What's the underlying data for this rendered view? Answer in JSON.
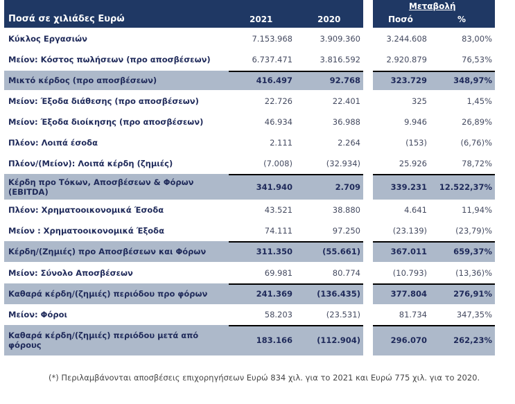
{
  "header": {
    "title": "Ποσά σε χιλιάδες Ευρώ",
    "col_2021": "2021",
    "col_2020": "2020",
    "change_group": "Μεταβολή",
    "col_amount": "Ποσό",
    "col_pct": "%"
  },
  "rows": [
    {
      "label": "Κύκλος Εργασιών",
      "v2021": "7.153.968",
      "v2020": "3.909.360",
      "amount": "3.244.608",
      "pct": "83,00%"
    },
    {
      "label": "Μείον: Κόστος πωλήσεων (προ αποσβέσεων)",
      "v2021": "6.737.471",
      "v2020": "3.816.592",
      "amount": "2.920.879",
      "pct": "76,53%"
    },
    {
      "label": "Μικτό κέρδος (προ αποσβέσεων)",
      "v2021": "416.497",
      "v2020": "92.768",
      "amount": "323.729",
      "pct": "348,97%"
    },
    {
      "label": "Μείον: Έξοδα διάθεσης (προ αποσβέσεων)",
      "v2021": "22.726",
      "v2020": "22.401",
      "amount": "325",
      "pct": "1,45%"
    },
    {
      "label": "Μείον: Έξοδα διοίκησης (προ αποσβέσεων)",
      "v2021": "46.934",
      "v2020": "36.988",
      "amount": "9.946",
      "pct": "26,89%"
    },
    {
      "label": "Πλέον: Λοιπά έσοδα",
      "v2021": "2.111",
      "v2020": "2.264",
      "amount": "(153)",
      "pct": "(6,76)%"
    },
    {
      "label": "Πλέον/(Μείον): Λοιπά κέρδη (ζημιές)",
      "v2021": "(7.008)",
      "v2020": "(32.934)",
      "amount": "25.926",
      "pct": "78,72%"
    },
    {
      "label": "Κέρδη προ Τόκων, Αποσβέσεων & Φόρων (EBITDA)",
      "v2021": "341.940",
      "v2020": "2.709",
      "amount": "339.231",
      "pct": "12.522,37%"
    },
    {
      "label": "Πλέον:  Χρηματοοικονομικά Έσοδα",
      "v2021": "43.521",
      "v2020": "38.880",
      "amount": "4.641",
      "pct": "11,94%"
    },
    {
      "label": "Μείον : Χρηματοοικονομικά Έξοδα",
      "v2021": "74.111",
      "v2020": "97.250",
      "amount": "(23.139)",
      "pct": "(23,79)%"
    },
    {
      "label": "Κέρδη/(Ζημιές) προ Αποσβέσεων και Φόρων",
      "v2021": "311.350",
      "v2020": "(55.661)",
      "amount": "367.011",
      "pct": "659,37%"
    },
    {
      "label": "Μείον: Σύνολο Αποσβέσεων",
      "v2021": "69.981",
      "v2020": "80.774",
      "amount": "(10.793)",
      "pct": "(13,36)%"
    },
    {
      "label": "Καθαρά κέρδη/(ζημιές) περιόδου προ φόρων",
      "v2021": "241.369",
      "v2020": "(136.435)",
      "amount": "377.804",
      "pct": "276,91%"
    },
    {
      "label": "Μείον: Φόροι",
      "v2021": "58.203",
      "v2020": "(23.531)",
      "amount": "81.734",
      "pct": "347,35%"
    },
    {
      "label": "Καθαρά κέρδη/(ζημιές) περιόδου μετά από φόρους",
      "v2021": "183.166",
      "v2020": "(112.904)",
      "amount": "296.070",
      "pct": "262,23%"
    }
  ],
  "footnote": "(*) Περιλαμβάνονται αποσβέσεις επιχορηγήσεων Ευρώ 834 χιλ. για το 2021 και Ευρώ 775 χιλ. για το 2020."
}
